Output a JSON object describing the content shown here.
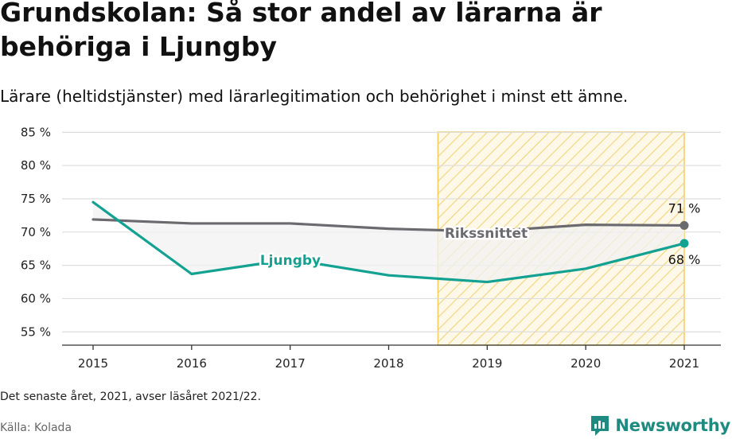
{
  "header": {
    "title": "Grundskolan: Så stor andel av lärarna är behöriga i Ljungby",
    "subtitle": "Lärare (heltidstjänster) med lärarlegitimation och behörighet i minst ett ämne."
  },
  "footer": {
    "note": "Det senaste året, 2021, avser läsåret 2021/22.",
    "source": "Källa: Kolada",
    "brand": "Newsworthy",
    "brand_icon": "newsworthy-logo-icon"
  },
  "chart_data": {
    "type": "line",
    "x": [
      2015,
      2016,
      2017,
      2018,
      2019,
      2020,
      2021
    ],
    "ylim": [
      53,
      86
    ],
    "yticks": [
      55,
      60,
      65,
      70,
      75,
      80,
      85
    ],
    "ytick_labels": [
      "55 %",
      "60 %",
      "65 %",
      "70 %",
      "75 %",
      "80 %",
      "85 %"
    ],
    "xtick_labels": [
      "2015",
      "2016",
      "2017",
      "2018",
      "2019",
      "2020",
      "2021"
    ],
    "grid": true,
    "highlight_range": [
      2018.5,
      2021
    ],
    "series": [
      {
        "name": "Rikssnittet",
        "color": "#6b6a6f",
        "values": [
          71.9,
          71.3,
          71.3,
          70.5,
          70.1,
          71.1,
          71.0
        ],
        "end_label": "71 %"
      },
      {
        "name": "Ljungby",
        "color": "#13a192",
        "values": [
          74.5,
          63.7,
          65.9,
          63.5,
          62.5,
          64.5,
          68.3
        ],
        "end_label": "68 %"
      }
    ],
    "colors": {
      "highlight_stroke": "#f3cc5e",
      "highlight_fill": "#fdf7e4",
      "grid": "#dddddd",
      "gap_fill": "#f1f1f1"
    }
  }
}
